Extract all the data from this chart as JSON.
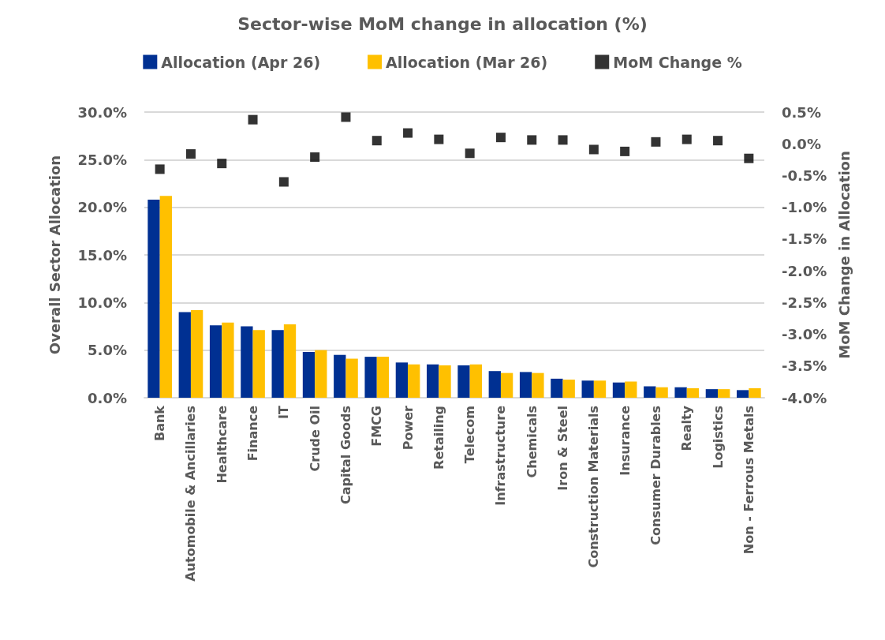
{
  "chart_data": {
    "type": "bar",
    "title": "Sector-wise MoM change in allocation (%)",
    "ylabel": "Overall Sector Allocation",
    "y2label": "MoM Change in Allocation",
    "categories": [
      "Bank",
      "Automobile & Ancillaries",
      "Healthcare",
      "Finance",
      "IT",
      "Crude Oil",
      "Capital Goods",
      "FMCG",
      "Power",
      "Retailing",
      "Telecom",
      "Infrastructure",
      "Chemicals",
      "Iron & Steel",
      "Construction Materials",
      "Insurance",
      "Consumer Durables",
      "Realty",
      "Logistics",
      "Non - Ferrous Metals"
    ],
    "series": [
      {
        "name": "Allocation (Apr 26)",
        "color": "#003092",
        "values": [
          20.8,
          9.0,
          7.6,
          7.5,
          7.1,
          4.8,
          4.5,
          4.3,
          3.7,
          3.5,
          3.4,
          2.8,
          2.7,
          2.0,
          1.8,
          1.6,
          1.2,
          1.1,
          0.9,
          0.8
        ]
      },
      {
        "name": "Allocation (Mar 26)",
        "color": "#ffc000",
        "values": [
          21.2,
          9.2,
          7.9,
          7.1,
          7.7,
          5.0,
          4.1,
          4.3,
          3.5,
          3.4,
          3.5,
          2.6,
          2.6,
          1.9,
          1.8,
          1.7,
          1.1,
          1.0,
          0.9,
          1.0
        ]
      },
      {
        "name": "MoM Change %",
        "type": "scatter",
        "axis": "y2",
        "marker": "square",
        "color": "#000000",
        "values": [
          -0.4,
          -0.16,
          -0.31,
          0.38,
          -0.6,
          -0.21,
          0.42,
          0.05,
          0.17,
          0.07,
          -0.15,
          0.1,
          0.06,
          0.06,
          -0.09,
          -0.12,
          0.03,
          0.07,
          0.05,
          -0.23
        ]
      }
    ],
    "ylim": [
      0,
      30
    ],
    "yticks": [
      {
        "value": 0,
        "label": "0.0%"
      },
      {
        "value": 5,
        "label": "5.0%"
      },
      {
        "value": 10,
        "label": "10.0%"
      },
      {
        "value": 15,
        "label": "15.0%"
      },
      {
        "value": 20,
        "label": "20.0%"
      },
      {
        "value": 25,
        "label": "25.0%"
      },
      {
        "value": 30,
        "label": "30.0%"
      }
    ],
    "y2lim": [
      -4,
      0.5
    ],
    "y2ticks": [
      {
        "value": -4,
        "label": "-4.0%"
      },
      {
        "value": -3.5,
        "label": "-3.5%"
      },
      {
        "value": -3,
        "label": "-3.0%"
      },
      {
        "value": -2.5,
        "label": "-2.5%"
      },
      {
        "value": -2,
        "label": "-2.0%"
      },
      {
        "value": -1.5,
        "label": "-1.5%"
      },
      {
        "value": -1,
        "label": "-1.0%"
      },
      {
        "value": -0.5,
        "label": "-0.5%"
      },
      {
        "value": 0,
        "label": "0.0%"
      },
      {
        "value": 0.5,
        "label": "0.5%"
      }
    ],
    "grid": "y",
    "legend": "top"
  }
}
